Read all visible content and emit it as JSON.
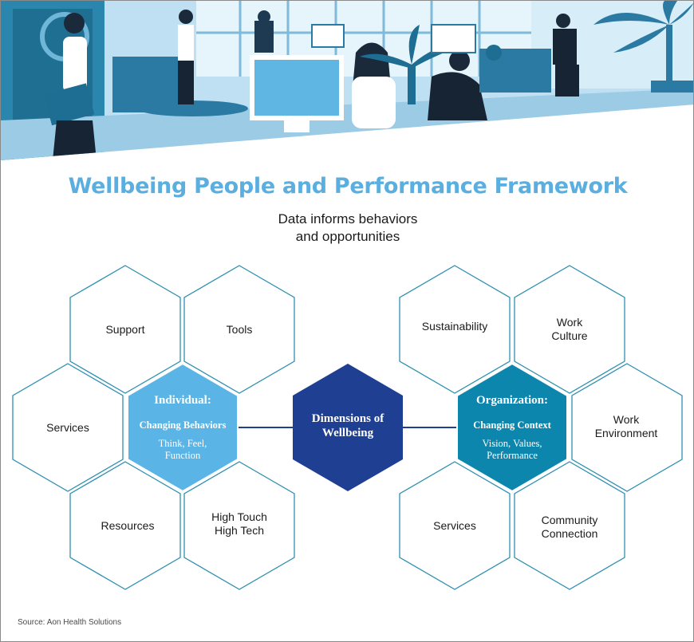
{
  "header": {
    "title": "Wellbeing People and Performance Framework",
    "subtitle_line1": "Data informs behaviors",
    "subtitle_line2": "and opportunities"
  },
  "individual": {
    "title": "Individual:",
    "subtitle": "Changing Behaviors",
    "detail_line1": "Think, Feel,",
    "detail_line2": "Function",
    "items": {
      "support": "Support",
      "tools": "Tools",
      "services": "Services",
      "resources": "Resources",
      "high_touch": "High Touch",
      "high_tech": "High Tech"
    }
  },
  "center": {
    "line1": "Dimensions of",
    "line2": "Wellbeing"
  },
  "organization": {
    "title": "Organization:",
    "subtitle": "Changing Context",
    "detail_line1": "Vision, Values,",
    "detail_line2": "Performance",
    "items": {
      "sustainability": "Sustainability",
      "work_culture_1": "Work",
      "work_culture_2": "Culture",
      "work_env_1": "Work",
      "work_env_2": "Environment",
      "services": "Services",
      "community_1": "Community",
      "community_2": "Connection"
    }
  },
  "footer": {
    "source": "Source: Aon Health Solutions"
  },
  "colors": {
    "title_blue": "#5aafe0",
    "outline_teal": "#2e8fb0",
    "individual_fill": "#5ab4e5",
    "center_fill": "#1f3f93",
    "organization_fill": "#0c86ad",
    "connector": "#1f3f93"
  }
}
